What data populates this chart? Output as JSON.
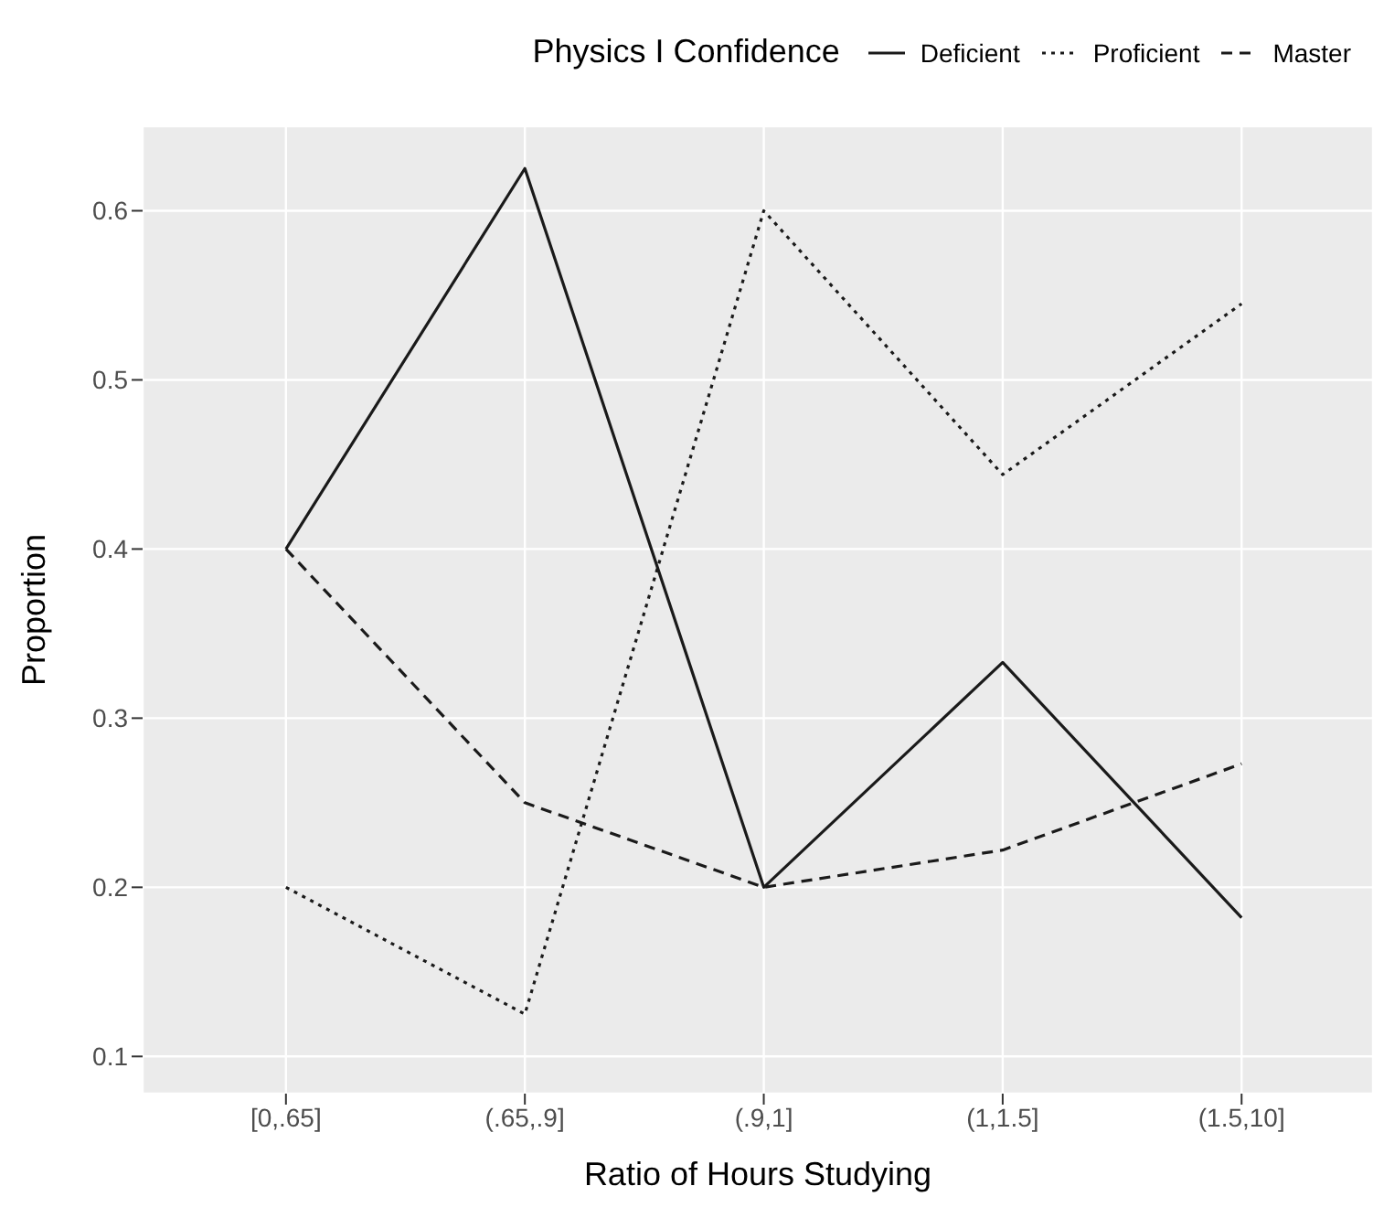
{
  "chart_data": {
    "type": "line",
    "xlabel": "Ratio of Hours Studying",
    "ylabel": "Proportion",
    "legend_title": "Physics I Confidence",
    "categories": [
      "[0,.65]",
      "(.65,.9]",
      "(.9,1]",
      "(1,1.5]",
      "(1.5,10]"
    ],
    "series": [
      {
        "name": "Deficient",
        "color": "#1a1a1a",
        "line_style": "solid",
        "values": [
          0.4,
          0.625,
          0.2,
          0.333,
          0.182
        ]
      },
      {
        "name": "Proficient",
        "color": "#1a1a1a",
        "line_style": "dotted",
        "values": [
          0.2,
          0.125,
          0.6,
          0.444,
          0.545
        ]
      },
      {
        "name": "Master",
        "color": "#1a1a1a",
        "line_style": "dashed",
        "values": [
          0.4,
          0.25,
          0.2,
          0.222,
          0.273
        ]
      }
    ],
    "ylim": [
      0.078,
      0.65
    ],
    "yticks": [
      0.1,
      0.2,
      0.3,
      0.4,
      0.5,
      0.6
    ],
    "grid": true,
    "legend": "top",
    "marker": "none"
  }
}
